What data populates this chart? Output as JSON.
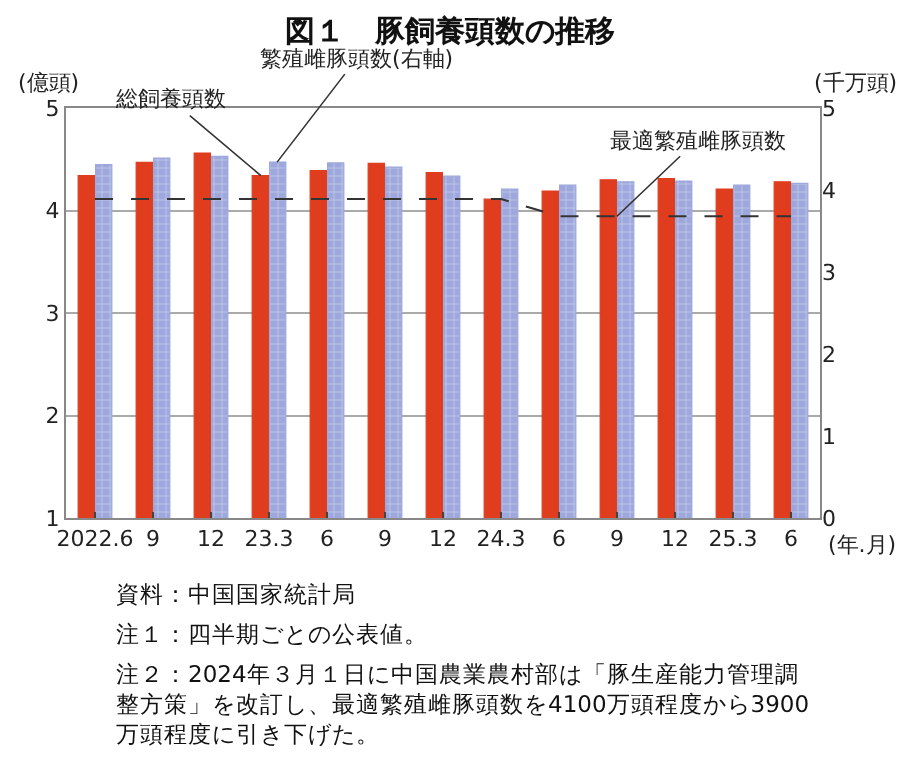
{
  "chart_data": {
    "type": "bar",
    "title": "図１　豚飼養頭数の推移",
    "categories": [
      "2022.6",
      "9",
      "12",
      "23.3",
      "6",
      "9",
      "12",
      "24.3",
      "6",
      "9",
      "12",
      "25.3",
      "6"
    ],
    "xlabel": "(年.月)",
    "ylabel": "(億頭)",
    "y2label": "(千万頭)",
    "series": [
      {
        "name": "総飼養頭数",
        "color": "#e03c1e",
        "values": [
          4.34,
          4.47,
          4.56,
          4.34,
          4.39,
          4.46,
          4.37,
          4.11,
          4.19,
          4.3,
          4.31,
          4.21,
          4.28
        ]
      },
      {
        "name": "繁殖雌豚頭数(右軸)",
        "axis": "y2",
        "color": "#9ea8dc",
        "values": [
          4.31,
          4.39,
          4.41,
          4.34,
          4.33,
          4.28,
          4.17,
          4.01,
          4.06,
          4.1,
          4.11,
          4.06,
          4.08
        ]
      },
      {
        "name": "最適繁殖雌豚頭数",
        "type": "line",
        "axis": "y2",
        "color": "#333333",
        "line_style": "dashed",
        "marker": "none",
        "values": [
          3.89,
          3.89,
          3.89,
          3.89,
          3.89,
          3.89,
          3.89,
          3.89,
          3.68,
          3.68,
          3.68,
          3.68,
          3.68
        ]
      }
    ],
    "ylim": [
      1,
      5
    ],
    "yticks": [
      1,
      2,
      3,
      4,
      5
    ],
    "y2lim": [
      0,
      5
    ],
    "y2ticks": [
      0,
      1,
      2,
      3,
      4,
      5
    ],
    "grid": "y",
    "legend": false,
    "annotations": [
      "資料：中国国家統計局",
      "注１：四半期ごとの公表値。",
      "注２：2024年３月１日に中国農業農村部は「豚生産能力管理調整方策」を改訂し、最適繁殖雌豚頭数を4100万頭程度から3900万頭程度に引き下げた。"
    ]
  }
}
